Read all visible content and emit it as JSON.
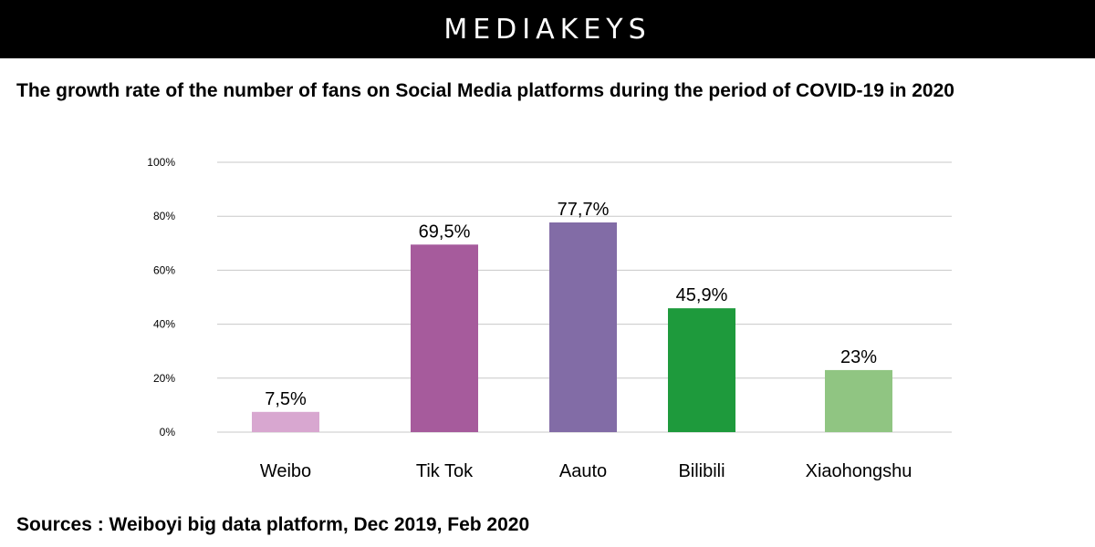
{
  "brand": {
    "name": "MEDIAKEYS"
  },
  "title": "The growth rate of the number of fans on Social Media platforms during the period of COVID-19 in 2020",
  "footer": "Sources : Weiboyi big data platform, Dec 2019, Feb 2020",
  "chart_data": {
    "type": "bar",
    "categories": [
      "Weibo",
      "Tik Tok",
      "Aauto",
      "Bilibili",
      "Xiaohongshu"
    ],
    "values": [
      7.5,
      69.5,
      77.7,
      45.9,
      23
    ],
    "value_labels": [
      "7,5%",
      "69,5%",
      "77,7%",
      "45,9%",
      "23%"
    ],
    "colors": [
      "#d8a7d0",
      "#a65b9c",
      "#826ca6",
      "#1e9a3c",
      "#90c582"
    ],
    "y_ticks": [
      {
        "value": 0,
        "label": "0%"
      },
      {
        "value": 20,
        "label": "20%"
      },
      {
        "value": 40,
        "label": "40%"
      },
      {
        "value": 60,
        "label": "60%"
      },
      {
        "value": 80,
        "label": "80%"
      },
      {
        "value": 100,
        "label": "100%"
      }
    ],
    "ylim": [
      0,
      100
    ],
    "grid": true,
    "legend": "none"
  }
}
